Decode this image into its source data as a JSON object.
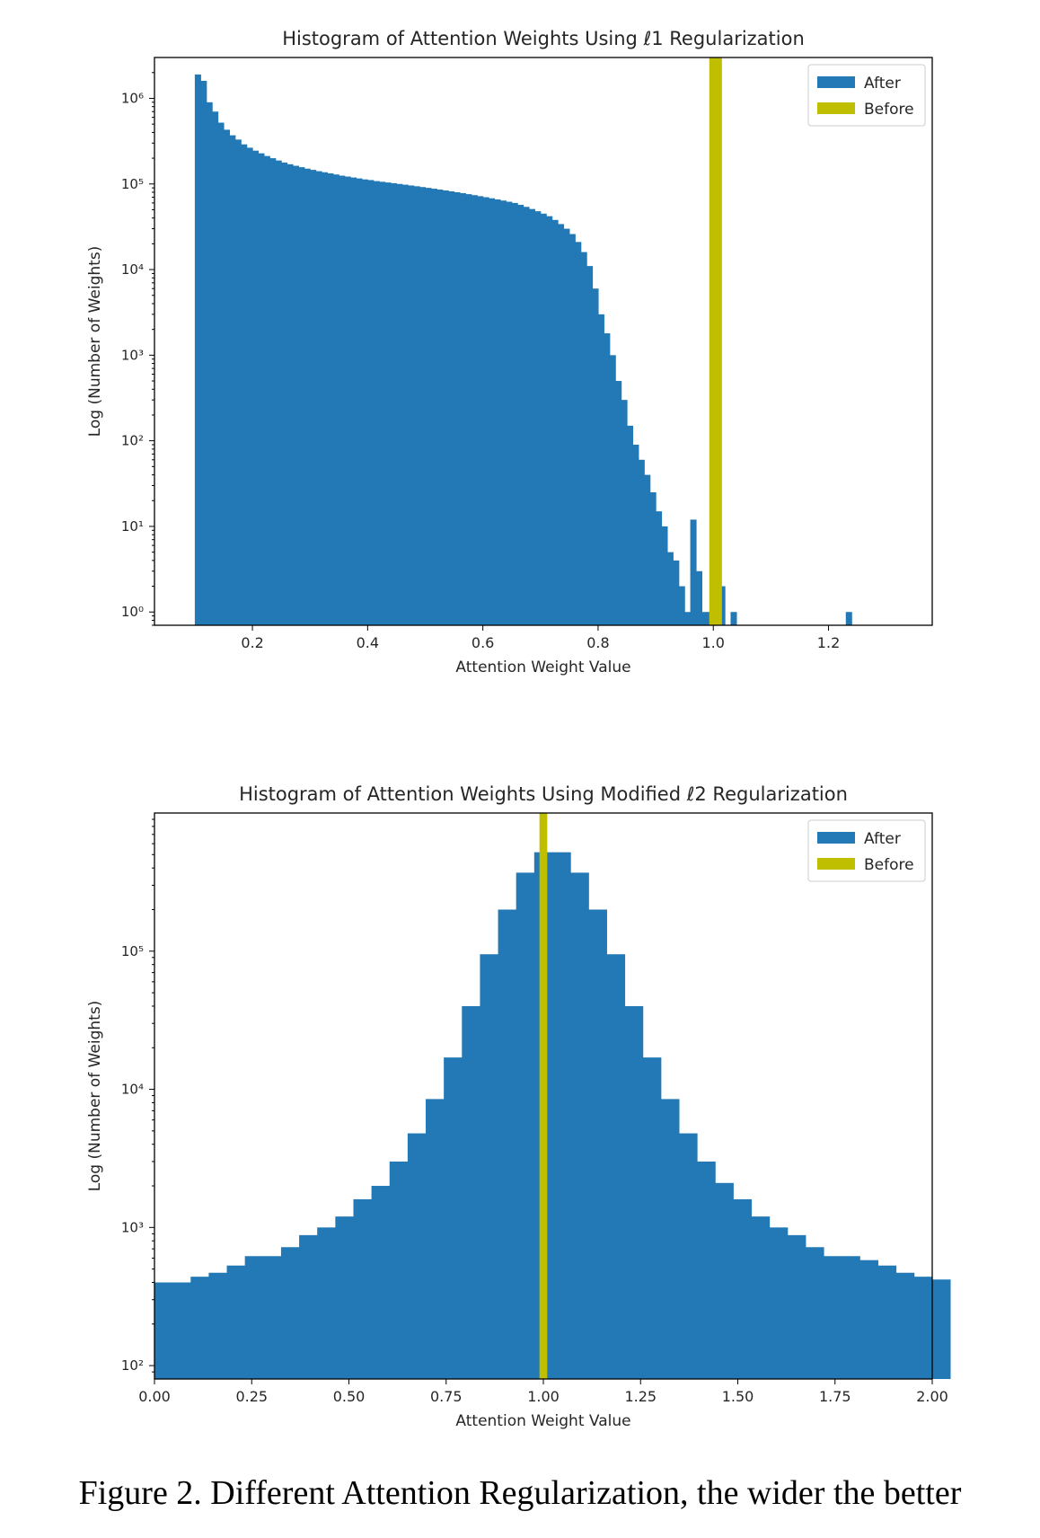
{
  "figure": {
    "caption": "Figure 2. Different Attention Regularization, the wider the better"
  },
  "colors": {
    "after": "#2279b5",
    "before": "#bfbf00",
    "axis": "#000000",
    "text": "#262626"
  },
  "chart_data": [
    {
      "type": "bar",
      "title": "Histogram of Attention Weights Using ℓ1 Regularization",
      "xlabel": "Attention Weight Value",
      "ylabel": "Log (Number of Weights)",
      "yscale": "log",
      "xlim": [
        0.03,
        1.38
      ],
      "ylim": [
        0.7,
        3000000
      ],
      "x_ticks": [
        0.2,
        0.4,
        0.6,
        0.8,
        1.0,
        1.2
      ],
      "x_tick_labels": [
        "0.2",
        "0.4",
        "0.6",
        "0.8",
        "1.0",
        "1.2"
      ],
      "y_ticks": [
        1,
        10,
        100,
        1000,
        10000,
        100000,
        1000000
      ],
      "y_tick_labels": [
        "10⁰",
        "10¹",
        "10²",
        "10³",
        "10⁴",
        "10⁵",
        "10⁶"
      ],
      "legend": {
        "position": "top-right",
        "entries": [
          "After",
          "Before"
        ]
      },
      "series": [
        {
          "name": "After",
          "bin_start": 0.1,
          "bin_width": 0.01,
          "values": [
            1900000,
            1600000,
            900000,
            700000,
            520000,
            430000,
            370000,
            330000,
            290000,
            265000,
            245000,
            228000,
            212000,
            200000,
            188000,
            178000,
            170000,
            163000,
            157000,
            151000,
            146000,
            141000,
            137000,
            133000,
            129000,
            125000,
            122000,
            119000,
            116000,
            113000,
            111000,
            108000,
            106000,
            104000,
            102000,
            100000,
            98000,
            96000,
            94000,
            92000,
            90000,
            88000,
            86000,
            84000,
            82000,
            80000,
            78000,
            76000,
            74000,
            72000,
            70000,
            68000,
            66000,
            64000,
            62000,
            60000,
            57000,
            54000,
            51000,
            48000,
            45000,
            42000,
            38000,
            34000,
            30000,
            26000,
            21000,
            16000,
            11000,
            6000,
            3000,
            1800,
            1000,
            500,
            300,
            150,
            90,
            60,
            40,
            25,
            15,
            10,
            5,
            4,
            2,
            1,
            12,
            3,
            1,
            1,
            2,
            2,
            0,
            1,
            0.5,
            0.5,
            0,
            0,
            0,
            0,
            0,
            0,
            0,
            0,
            0,
            0,
            0,
            0,
            0,
            0,
            0,
            0,
            0,
            1,
            0,
            0,
            0,
            0,
            0,
            0,
            0,
            0,
            0,
            0,
            0,
            0,
            0,
            0,
            0,
            0,
            0,
            0,
            0,
            0,
            0,
            0,
            0,
            0
          ]
        },
        {
          "name": "Before",
          "bar_left": 0.993,
          "bar_right": 1.015,
          "value": 3000000
        }
      ]
    },
    {
      "type": "bar",
      "title": "Histogram of Attention Weights Using Modified ℓ2 Regularization",
      "xlabel": "Attention Weight Value",
      "ylabel": "Log (Number of Weights)",
      "yscale": "log",
      "xlim": [
        0.0,
        2.0
      ],
      "ylim": [
        80,
        1000000
      ],
      "x_ticks": [
        0.0,
        0.25,
        0.5,
        0.75,
        1.0,
        1.25,
        1.5,
        1.75,
        2.0
      ],
      "x_tick_labels": [
        "0.00",
        "0.25",
        "0.50",
        "0.75",
        "1.00",
        "1.25",
        "1.50",
        "1.75",
        "2.00"
      ],
      "y_ticks": [
        100,
        1000,
        10000,
        100000
      ],
      "y_tick_labels": [
        "10²",
        "10³",
        "10⁴",
        "10⁵"
      ],
      "legend": {
        "position": "top-right",
        "entries": [
          "After",
          "Before"
        ]
      },
      "series": [
        {
          "name": "After",
          "bin_start": 0.0,
          "bin_width": 0.0465,
          "values": [
            400,
            400,
            440,
            470,
            530,
            620,
            620,
            720,
            880,
            1000,
            1200,
            1600,
            2000,
            3000,
            4800,
            8500,
            17000,
            40000,
            95000,
            200000,
            370000,
            520000,
            520000,
            370000,
            200000,
            95000,
            40000,
            17000,
            8500,
            4800,
            3000,
            2100,
            1600,
            1200,
            1000,
            880,
            720,
            620,
            620,
            580,
            530,
            470,
            440,
            420
          ]
        },
        {
          "name": "Before",
          "bar_left": 0.99,
          "bar_right": 1.01,
          "value": 1000000
        }
      ]
    }
  ]
}
